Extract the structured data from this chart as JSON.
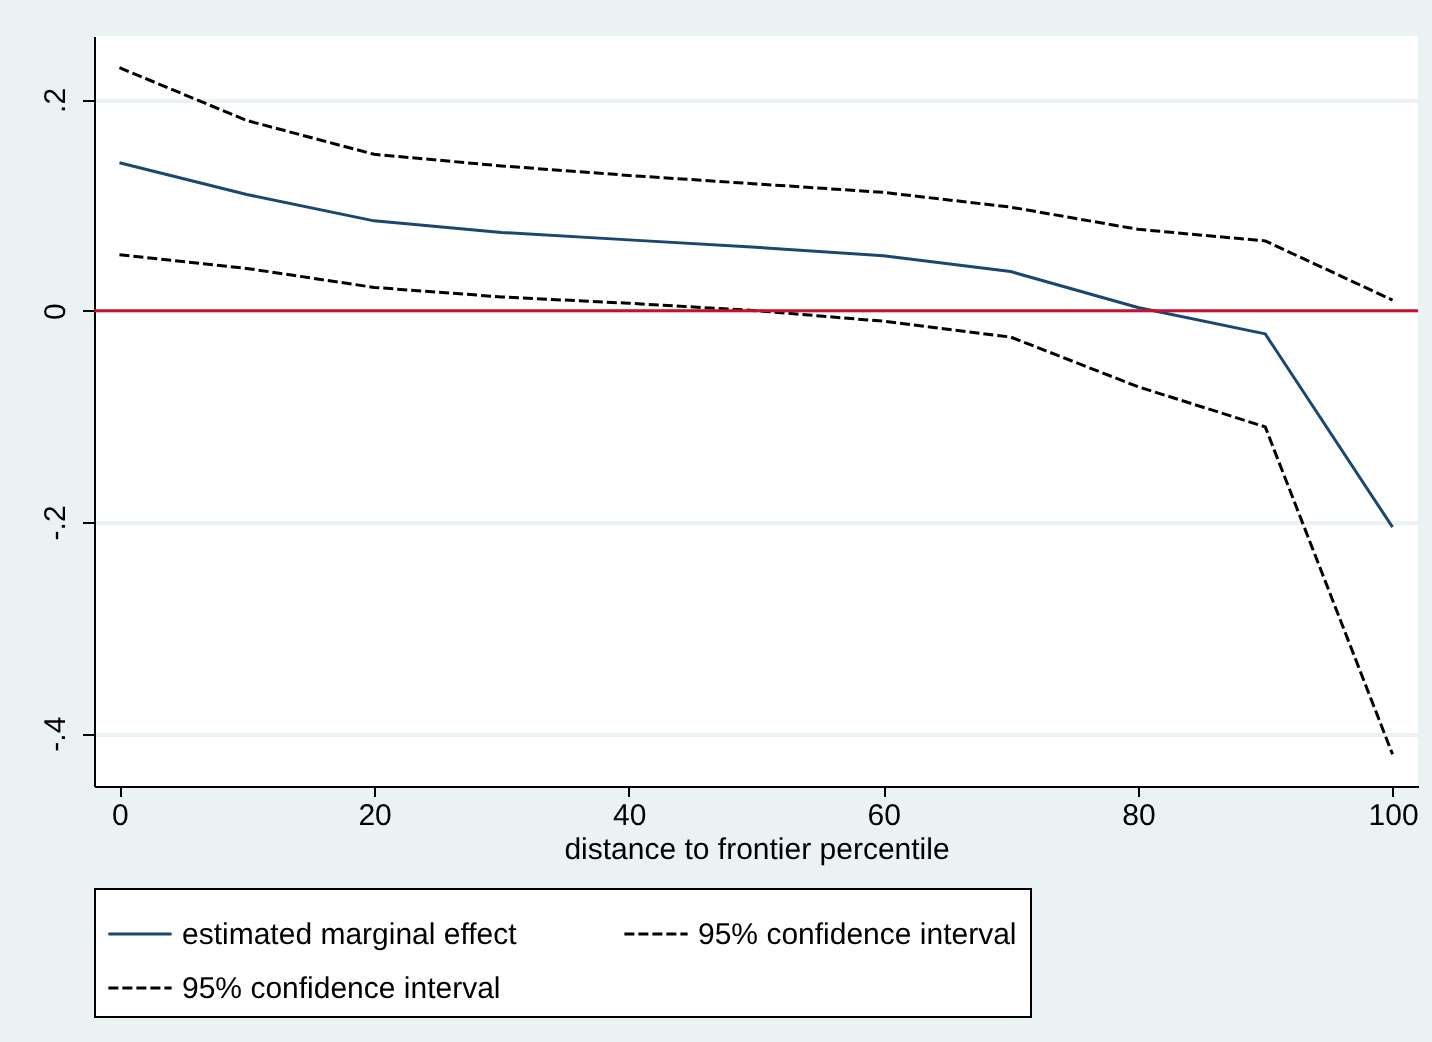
{
  "chart_data": {
    "type": "line",
    "xlabel": "distance to frontier percentile",
    "x": [
      0,
      10,
      20,
      30,
      40,
      50,
      60,
      70,
      80,
      90,
      100
    ],
    "series": [
      {
        "name": "estimated marginal effect",
        "color": "#1a476f",
        "line_style": "solid",
        "values": [
          0.14,
          0.11,
          0.085,
          0.074,
          0.067,
          0.06,
          0.052,
          0.037,
          0.003,
          -0.022,
          -0.205
        ]
      },
      {
        "name": "95% confidence interval",
        "color": "#000000",
        "line_style": "dashed",
        "values": [
          0.23,
          0.18,
          0.148,
          0.137,
          0.128,
          0.12,
          0.112,
          0.098,
          0.077,
          0.066,
          0.01
        ]
      },
      {
        "name": "95% confidence interval",
        "color": "#000000",
        "line_style": "dashed",
        "values": [
          0.053,
          0.04,
          0.022,
          0.013,
          0.007,
          0.0,
          -0.01,
          -0.025,
          -0.072,
          -0.11,
          -0.42
        ]
      }
    ],
    "xlim": [
      -2,
      102
    ],
    "xticks": [
      0,
      20,
      40,
      60,
      80,
      100
    ],
    "ylim": [
      -0.45,
      0.26
    ],
    "yticks": [
      {
        "value": -0.4,
        "label": "-.4"
      },
      {
        "value": -0.2,
        "label": "-.2"
      },
      {
        "value": 0,
        "label": "0"
      },
      {
        "value": 0.2,
        "label": ".2"
      }
    ],
    "grid": "y",
    "legend": "bottom",
    "ref_lines": [
      {
        "axis": "y",
        "value": 0,
        "color": "#c8102e"
      }
    ]
  }
}
